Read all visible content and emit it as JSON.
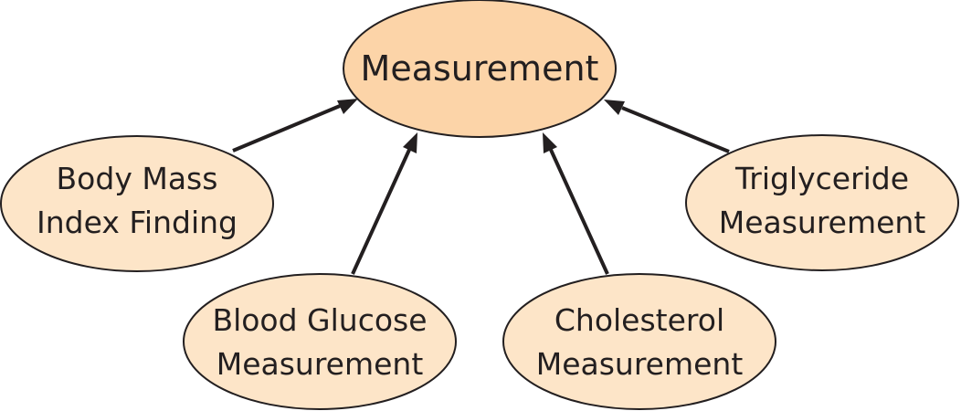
{
  "diagram": {
    "root": {
      "label": "Measurement"
    },
    "children": [
      {
        "label_line1": "Body Mass",
        "label_line2": "Index Finding"
      },
      {
        "label_line1": "Blood Glucose",
        "label_line2": "Measurement"
      },
      {
        "label_line1": "Cholesterol",
        "label_line2": "Measurement"
      },
      {
        "label_line1": "Triglyceride",
        "label_line2": "Measurement"
      }
    ],
    "edge_relation": "child-to-parent arrow",
    "colors": {
      "root_fill": "#fcd4a8",
      "child_fill": "#fde5c8",
      "stroke": "#231f20",
      "arrow": "#231f20"
    }
  }
}
